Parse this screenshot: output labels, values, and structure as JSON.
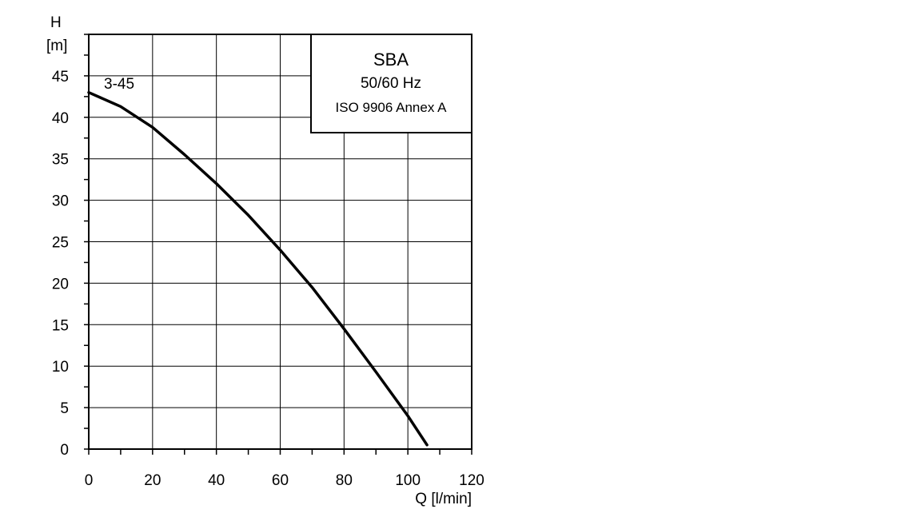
{
  "chart_data": {
    "type": "line",
    "xlabel": "Q [l/min]",
    "ylabel_top": "H",
    "ylabel_unit": "[m]",
    "xlim": [
      0,
      120
    ],
    "ylim": [
      0,
      50
    ],
    "x_ticks": [
      0,
      20,
      40,
      60,
      80,
      100,
      120
    ],
    "y_ticks": [
      0,
      5,
      10,
      15,
      20,
      25,
      30,
      35,
      40,
      45
    ],
    "grid": true,
    "legend_box": {
      "title": "SBA",
      "line1": "50/60 Hz",
      "line2": "ISO 9906 Annex A",
      "placement": "top-right"
    },
    "series": [
      {
        "name": "3-45",
        "x": [
          0,
          10,
          20,
          30,
          40,
          50,
          60,
          70,
          80,
          90,
          100,
          106
        ],
        "y": [
          43,
          41.3,
          38.8,
          35.5,
          32.0,
          28.2,
          24.0,
          19.5,
          14.5,
          9.3,
          4.0,
          0.5
        ]
      }
    ]
  }
}
